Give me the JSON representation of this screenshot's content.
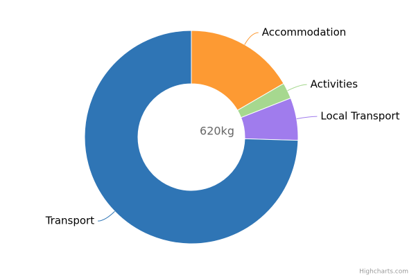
{
  "chart_data": {
    "type": "donut",
    "center_label": "620kg",
    "categories": [
      "Accommodation",
      "Activities",
      "Local Transport",
      "Transport"
    ],
    "values": [
      103,
      15,
      40,
      462
    ],
    "colors": [
      "#fd9a33",
      "#a6d88f",
      "#a07ced",
      "#2f75b5"
    ],
    "credits": "Highcharts.com"
  }
}
